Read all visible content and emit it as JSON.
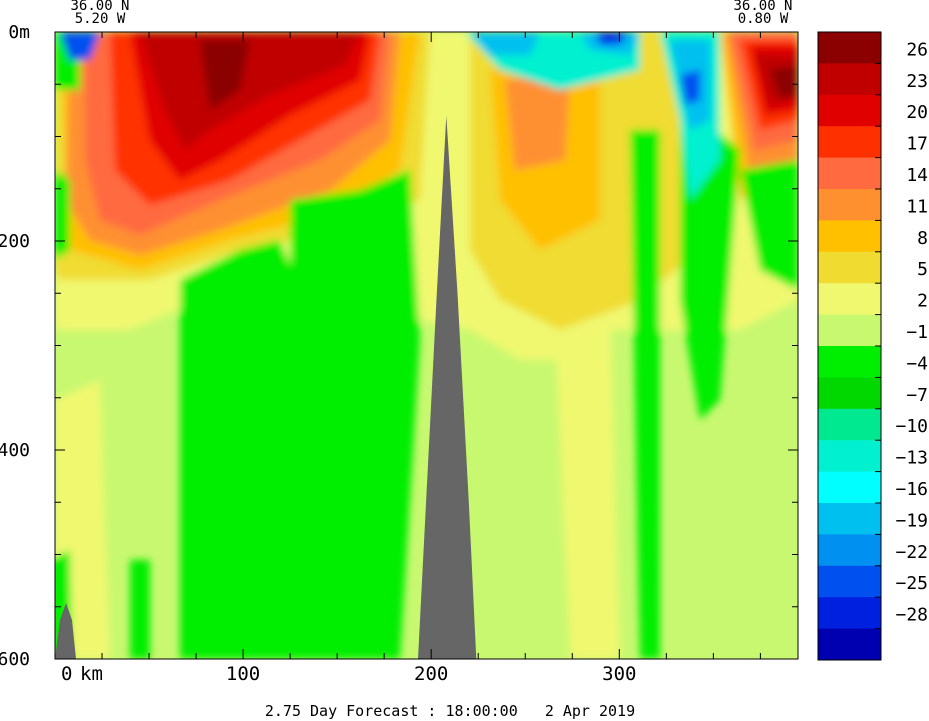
{
  "chart_data": {
    "type": "heatmap",
    "title": "",
    "footer": "2.75 Day Forecast : 18:00:00   2 Apr 2019",
    "endpoints": {
      "left": {
        "lat": "36.00 N",
        "lon": "5.20 W"
      },
      "right": {
        "lat": "36.00 N",
        "lon": "0.80 W"
      }
    },
    "xlabel": "",
    "ylabel": "",
    "x_unit": "km",
    "y_unit": "m",
    "xlim": [
      0,
      395
    ],
    "ylim": [
      0,
      600
    ],
    "y_inverted": true,
    "x_tick_labels": [
      "0",
      "100",
      "200",
      "300"
    ],
    "x_ticks": [
      0,
      100,
      200,
      300
    ],
    "y_tick_labels": [
      "0m",
      "200",
      "400",
      "600"
    ],
    "y_ticks": [
      0,
      200,
      400,
      600
    ],
    "bathymetry_color": "#666666",
    "bathymetry_ridge": {
      "x": [
        193,
        203,
        208,
        214,
        220,
        224
      ],
      "depth": [
        600,
        250,
        80,
        250,
        450,
        600
      ]
    },
    "colorbar": {
      "tick_labels": [
        "26",
        "23",
        "20",
        "17",
        "14",
        "11",
        "8",
        "5",
        "2",
        "−1",
        "−4",
        "−7",
        "−10",
        "−13",
        "−16",
        "−19",
        "−22",
        "−25",
        "−28"
      ],
      "colors": [
        "#8b0000",
        "#c00000",
        "#e00000",
        "#ff3000",
        "#ff6a40",
        "#ff9030",
        "#ffc000",
        "#f0dc30",
        "#f0f870",
        "#c8f870",
        "#00ee00",
        "#00d800",
        "#00e890",
        "#00f0d0",
        "#00ffff",
        "#00c0f0",
        "#0090f0",
        "#0050f0",
        "#0020e0",
        "#0000b0"
      ]
    },
    "field_summary": [
      {
        "x_range": [
          0,
          120
        ],
        "depth_range": [
          0,
          250
        ],
        "value_approx": 14
      },
      {
        "x_range": [
          70,
          200
        ],
        "depth_range": [
          0,
          100
        ],
        "value_approx": 23
      },
      {
        "x_range": [
          360,
          395
        ],
        "depth_range": [
          0,
          150
        ],
        "value_approx": 23
      },
      {
        "x_range": [
          230,
          350
        ],
        "depth_range": [
          0,
          50
        ],
        "value_approx": -15
      },
      {
        "x_range": [
          130,
          200
        ],
        "depth_range": [
          150,
          600
        ],
        "value_approx": -3
      },
      {
        "x_range": [
          220,
          395
        ],
        "depth_range": [
          250,
          600
        ],
        "value_approx": 2
      }
    ]
  }
}
